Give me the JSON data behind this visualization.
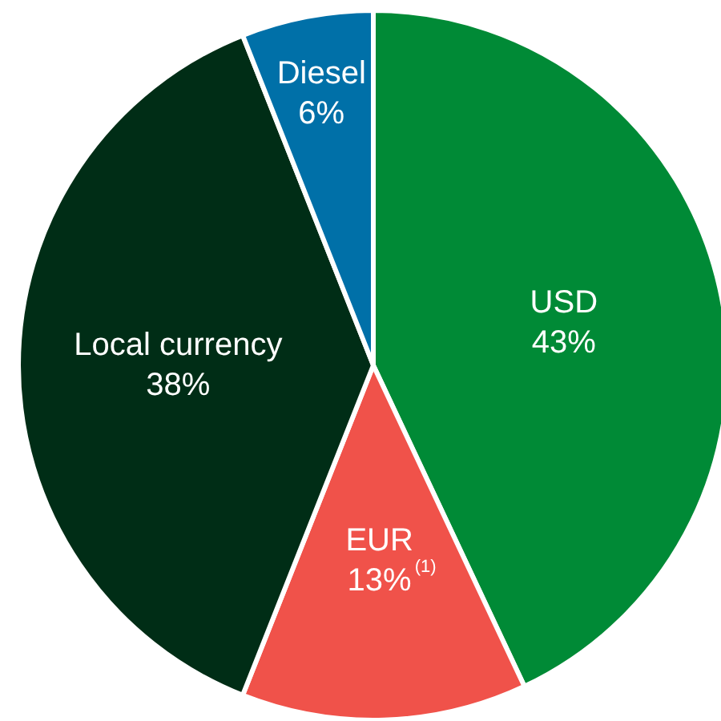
{
  "chart_data": {
    "type": "pie",
    "categories": [
      "USD",
      "EUR",
      "Local currency",
      "Diesel"
    ],
    "values": [
      43,
      13,
      38,
      6
    ],
    "colors": [
      "#008a36",
      "#f0524a",
      "#002d16",
      "#0070a8"
    ],
    "value_labels": [
      "43%",
      "13%$^{(1)}$",
      "38%",
      "6%"
    ],
    "legend": false
  }
}
